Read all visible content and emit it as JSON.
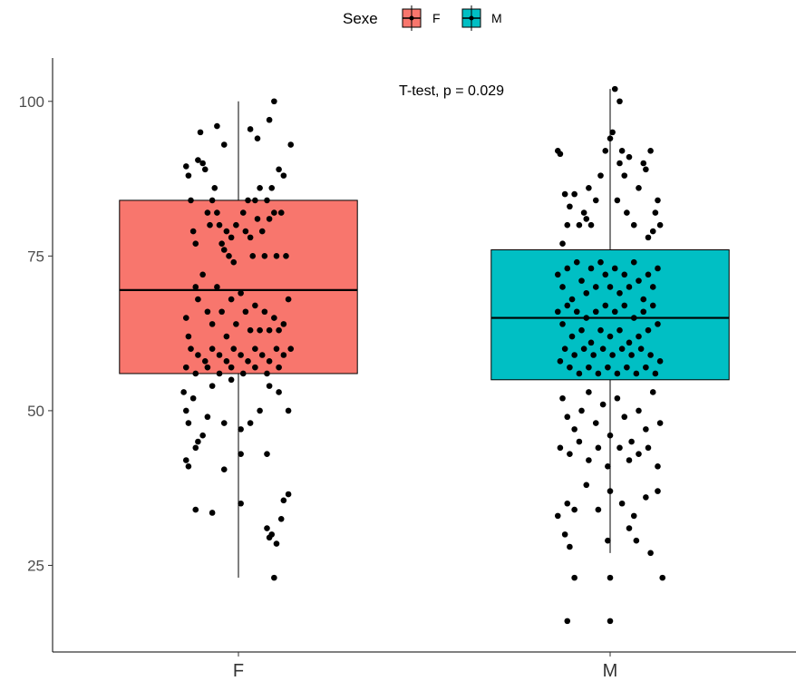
{
  "chart_data": {
    "type": "boxplot",
    "title": "",
    "xlabel": "",
    "ylabel": "",
    "ylim": [
      11,
      107
    ],
    "y_ticks": [
      25,
      50,
      75,
      100
    ],
    "categories": [
      "F",
      "M"
    ],
    "legend": {
      "title": "Sexe",
      "position": "top",
      "entries": [
        "F",
        "M"
      ]
    },
    "annotation": "T-test, p = 0.029",
    "grid": false,
    "colors": {
      "F": "#f8766d",
      "M": "#00bfc4"
    },
    "boxes": [
      {
        "name": "F",
        "min": 23,
        "q1": 56,
        "median": 69.5,
        "q3": 84,
        "max": 100
      },
      {
        "name": "M",
        "min": 27,
        "q1": 55,
        "median": 65,
        "q3": 76,
        "max": 102
      }
    ],
    "points": {
      "F": [
        [
          -0.44,
          89.5
        ],
        [
          -0.42,
          88
        ],
        [
          -0.4,
          84
        ],
        [
          -0.38,
          79
        ],
        [
          -0.36,
          77
        ],
        [
          -0.34,
          90.5
        ],
        [
          -0.3,
          90
        ],
        [
          -0.28,
          89
        ],
        [
          -0.26,
          82
        ],
        [
          -0.24,
          80
        ],
        [
          -0.22,
          84
        ],
        [
          -0.2,
          86
        ],
        [
          -0.18,
          82
        ],
        [
          -0.16,
          80
        ],
        [
          -0.14,
          77
        ],
        [
          -0.12,
          76
        ],
        [
          -0.1,
          79
        ],
        [
          -0.08,
          75
        ],
        [
          -0.06,
          78
        ],
        [
          -0.04,
          74
        ],
        [
          -0.02,
          80
        ],
        [
          0.04,
          82
        ],
        [
          0.06,
          79
        ],
        [
          0.08,
          84
        ],
        [
          0.1,
          78
        ],
        [
          0.12,
          75
        ],
        [
          0.14,
          84
        ],
        [
          0.16,
          81
        ],
        [
          0.18,
          86
        ],
        [
          0.2,
          79
        ],
        [
          0.22,
          75
        ],
        [
          0.24,
          84
        ],
        [
          0.26,
          81
        ],
        [
          0.28,
          86
        ],
        [
          0.3,
          82
        ],
        [
          0.32,
          75
        ],
        [
          0.34,
          89
        ],
        [
          0.36,
          82
        ],
        [
          0.38,
          88
        ],
        [
          0.4,
          75
        ],
        [
          -0.32,
          95
        ],
        [
          -0.18,
          96
        ],
        [
          -0.12,
          93
        ],
        [
          0.1,
          95.5
        ],
        [
          0.16,
          94
        ],
        [
          0.26,
          97
        ],
        [
          0.3,
          100
        ],
        [
          0.44,
          93
        ],
        [
          -0.44,
          65
        ],
        [
          -0.42,
          62
        ],
        [
          -0.36,
          70
        ],
        [
          -0.34,
          68
        ],
        [
          -0.3,
          72
        ],
        [
          -0.26,
          66
        ],
        [
          -0.22,
          64
        ],
        [
          -0.18,
          70
        ],
        [
          -0.14,
          66
        ],
        [
          -0.1,
          62
        ],
        [
          -0.06,
          68
        ],
        [
          -0.02,
          64
        ],
        [
          0.02,
          69
        ],
        [
          0.06,
          66
        ],
        [
          0.1,
          63
        ],
        [
          0.14,
          67
        ],
        [
          0.18,
          63
        ],
        [
          0.22,
          66
        ],
        [
          0.26,
          63
        ],
        [
          0.3,
          65
        ],
        [
          0.34,
          63
        ],
        [
          0.38,
          64
        ],
        [
          0.42,
          68
        ],
        [
          -0.4,
          60
        ],
        [
          -0.34,
          59
        ],
        [
          -0.28,
          58
        ],
        [
          -0.22,
          60
        ],
        [
          -0.16,
          59
        ],
        [
          -0.1,
          58
        ],
        [
          -0.04,
          60
        ],
        [
          0.02,
          59
        ],
        [
          0.08,
          58
        ],
        [
          0.14,
          60
        ],
        [
          0.2,
          59
        ],
        [
          0.26,
          58
        ],
        [
          0.32,
          60
        ],
        [
          0.38,
          59
        ],
        [
          0.44,
          60
        ],
        [
          -0.44,
          57
        ],
        [
          -0.36,
          56
        ],
        [
          -0.26,
          57
        ],
        [
          -0.16,
          56
        ],
        [
          -0.06,
          57
        ],
        [
          0.04,
          56
        ],
        [
          0.14,
          57
        ],
        [
          0.24,
          56
        ],
        [
          0.34,
          57
        ],
        [
          -0.46,
          53
        ],
        [
          -0.44,
          50
        ],
        [
          -0.42,
          48
        ],
        [
          -0.38,
          52
        ],
        [
          -0.34,
          45
        ],
        [
          -0.3,
          46
        ],
        [
          -0.26,
          49
        ],
        [
          -0.22,
          54
        ],
        [
          -0.12,
          48
        ],
        [
          -0.06,
          55
        ],
        [
          0.02,
          47
        ],
        [
          0.1,
          48
        ],
        [
          0.18,
          50
        ],
        [
          0.26,
          54
        ],
        [
          0.34,
          53
        ],
        [
          0.42,
          50
        ],
        [
          -0.44,
          42
        ],
        [
          -0.42,
          41
        ],
        [
          -0.36,
          44
        ],
        [
          -0.12,
          40.5
        ],
        [
          0.02,
          43
        ],
        [
          0.24,
          43
        ],
        [
          -0.36,
          34
        ],
        [
          -0.22,
          33.5
        ],
        [
          0.02,
          35
        ],
        [
          0.28,
          30
        ],
        [
          0.32,
          28.5
        ],
        [
          0.36,
          32.5
        ],
        [
          0.38,
          35.5
        ],
        [
          0.42,
          36.5
        ],
        [
          0.24,
          31
        ],
        [
          0.26,
          29.5
        ],
        [
          0.3,
          23
        ]
      ],
      "M": [
        [
          -0.44,
          92
        ],
        [
          -0.42,
          91.5
        ],
        [
          -0.38,
          85
        ],
        [
          -0.34,
          83
        ],
        [
          -0.3,
          85
        ],
        [
          -0.26,
          80
        ],
        [
          -0.22,
          82
        ],
        [
          -0.18,
          86
        ],
        [
          -0.16,
          80
        ],
        [
          -0.12,
          84
        ],
        [
          -0.08,
          88
        ],
        [
          -0.04,
          92
        ],
        [
          0.0,
          94
        ],
        [
          0.02,
          95
        ],
        [
          0.08,
          90
        ],
        [
          0.1,
          92
        ],
        [
          0.12,
          88
        ],
        [
          0.16,
          91
        ],
        [
          0.2,
          80
        ],
        [
          0.24,
          86
        ],
        [
          0.28,
          90
        ],
        [
          0.3,
          89
        ],
        [
          0.34,
          92
        ],
        [
          0.38,
          82
        ],
        [
          0.4,
          84
        ],
        [
          0.42,
          80
        ],
        [
          -0.4,
          77
        ],
        [
          -0.36,
          80
        ],
        [
          -0.2,
          81
        ],
        [
          0.06,
          84
        ],
        [
          0.14,
          82
        ],
        [
          0.32,
          78
        ],
        [
          0.36,
          79
        ],
        [
          -0.44,
          72
        ],
        [
          -0.4,
          70
        ],
        [
          -0.36,
          73
        ],
        [
          -0.32,
          68
        ],
        [
          -0.28,
          74
        ],
        [
          -0.24,
          71
        ],
        [
          -0.2,
          69
        ],
        [
          -0.16,
          73
        ],
        [
          -0.12,
          70
        ],
        [
          -0.08,
          74
        ],
        [
          -0.04,
          72
        ],
        [
          0.0,
          70
        ],
        [
          0.04,
          73
        ],
        [
          0.08,
          69
        ],
        [
          0.12,
          72
        ],
        [
          0.16,
          70
        ],
        [
          0.2,
          74
        ],
        [
          0.24,
          71
        ],
        [
          0.28,
          68
        ],
        [
          0.32,
          72
        ],
        [
          0.36,
          70
        ],
        [
          0.4,
          73
        ],
        [
          -0.44,
          66
        ],
        [
          -0.4,
          64
        ],
        [
          -0.36,
          67
        ],
        [
          -0.32,
          62
        ],
        [
          -0.28,
          66
        ],
        [
          -0.24,
          63
        ],
        [
          -0.2,
          65
        ],
        [
          -0.16,
          61
        ],
        [
          -0.12,
          66
        ],
        [
          -0.08,
          63
        ],
        [
          -0.04,
          67
        ],
        [
          0.0,
          62
        ],
        [
          0.04,
          66
        ],
        [
          0.08,
          63
        ],
        [
          0.12,
          67
        ],
        [
          0.16,
          61
        ],
        [
          0.2,
          65
        ],
        [
          0.24,
          62
        ],
        [
          0.28,
          66
        ],
        [
          0.32,
          63
        ],
        [
          0.36,
          67
        ],
        [
          0.4,
          64
        ],
        [
          -0.42,
          58
        ],
        [
          -0.38,
          60
        ],
        [
          -0.34,
          57
        ],
        [
          -0.3,
          59
        ],
        [
          -0.26,
          56
        ],
        [
          -0.22,
          60
        ],
        [
          -0.18,
          57
        ],
        [
          -0.14,
          59
        ],
        [
          -0.1,
          56
        ],
        [
          -0.06,
          60
        ],
        [
          -0.02,
          57
        ],
        [
          0.02,
          59
        ],
        [
          0.06,
          56
        ],
        [
          0.1,
          60
        ],
        [
          0.14,
          57
        ],
        [
          0.18,
          59
        ],
        [
          0.22,
          56
        ],
        [
          0.26,
          60
        ],
        [
          0.3,
          57
        ],
        [
          0.34,
          59
        ],
        [
          0.38,
          56
        ],
        [
          0.42,
          58
        ],
        [
          -0.4,
          52
        ],
        [
          -0.36,
          49
        ],
        [
          -0.3,
          47
        ],
        [
          -0.24,
          50
        ],
        [
          -0.18,
          53
        ],
        [
          -0.12,
          48
        ],
        [
          -0.06,
          51
        ],
        [
          0.0,
          46
        ],
        [
          0.06,
          52
        ],
        [
          0.12,
          49
        ],
        [
          0.18,
          45
        ],
        [
          0.24,
          50
        ],
        [
          0.3,
          47
        ],
        [
          0.36,
          53
        ],
        [
          0.42,
          48
        ],
        [
          -0.42,
          44
        ],
        [
          -0.34,
          43
        ],
        [
          -0.26,
          45
        ],
        [
          -0.18,
          42
        ],
        [
          -0.1,
          44
        ],
        [
          -0.02,
          41
        ],
        [
          0.08,
          44
        ],
        [
          0.16,
          42
        ],
        [
          0.24,
          43
        ],
        [
          0.32,
          44
        ],
        [
          0.4,
          41
        ],
        [
          -0.44,
          33
        ],
        [
          -0.36,
          35
        ],
        [
          -0.3,
          34
        ],
        [
          -0.2,
          38
        ],
        [
          -0.1,
          34
        ],
        [
          0.0,
          37
        ],
        [
          0.1,
          35
        ],
        [
          0.2,
          33
        ],
        [
          0.3,
          36
        ],
        [
          0.4,
          37
        ],
        [
          -0.38,
          30
        ],
        [
          -0.34,
          28
        ],
        [
          -0.02,
          29
        ],
        [
          0.16,
          31
        ],
        [
          0.22,
          29
        ],
        [
          0.34,
          27
        ],
        [
          -0.3,
          23
        ],
        [
          0.0,
          23
        ],
        [
          0.44,
          23
        ],
        [
          -0.36,
          16
        ],
        [
          0.0,
          16
        ],
        [
          0.04,
          102
        ],
        [
          0.08,
          100
        ]
      ]
    }
  }
}
